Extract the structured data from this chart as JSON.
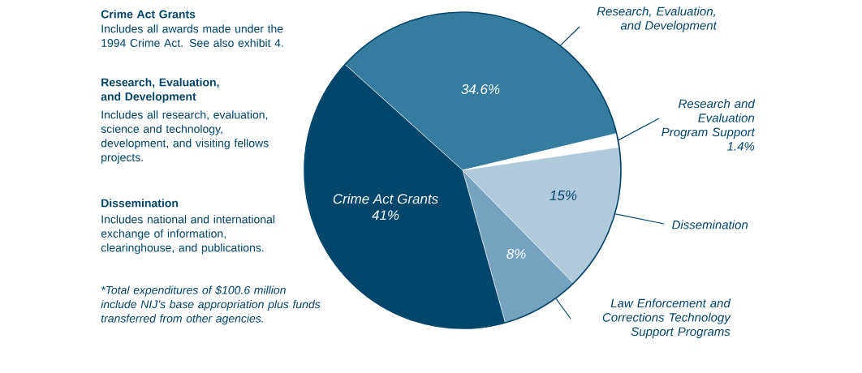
{
  "chart_data": {
    "type": "pie",
    "categories": [
      "Research, Evaluation, and Development",
      "Research and Evaluation Program Support",
      "Dissemination",
      "Law Enforcement and Corrections Technology Support Programs",
      "Crime Act Grants"
    ],
    "values": [
      34.6,
      1.4,
      15,
      8,
      41
    ],
    "value_labels": [
      "34.6%",
      "1.4%",
      "15%",
      "8%",
      "41%"
    ],
    "colors": [
      "#357c9e",
      "#ffffff",
      "#b0c9db",
      "#74a2bf",
      "#00466b"
    ],
    "annotations": [
      "Crime Act Grants",
      "Includes all awards made under the 1994 Crime Act. See also exhibit 4.",
      "Research, Evaluation, and Development",
      "Includes all research, evaluation, science and technology, development, and visiting fellows projects.",
      "Dissemination",
      "Includes national and international exchange of information, clearinghouse, and publications.",
      "*Total expenditures of $100.6 million include NIJ’s base appropriation plus funds transferred from other agencies."
    ]
  }
}
